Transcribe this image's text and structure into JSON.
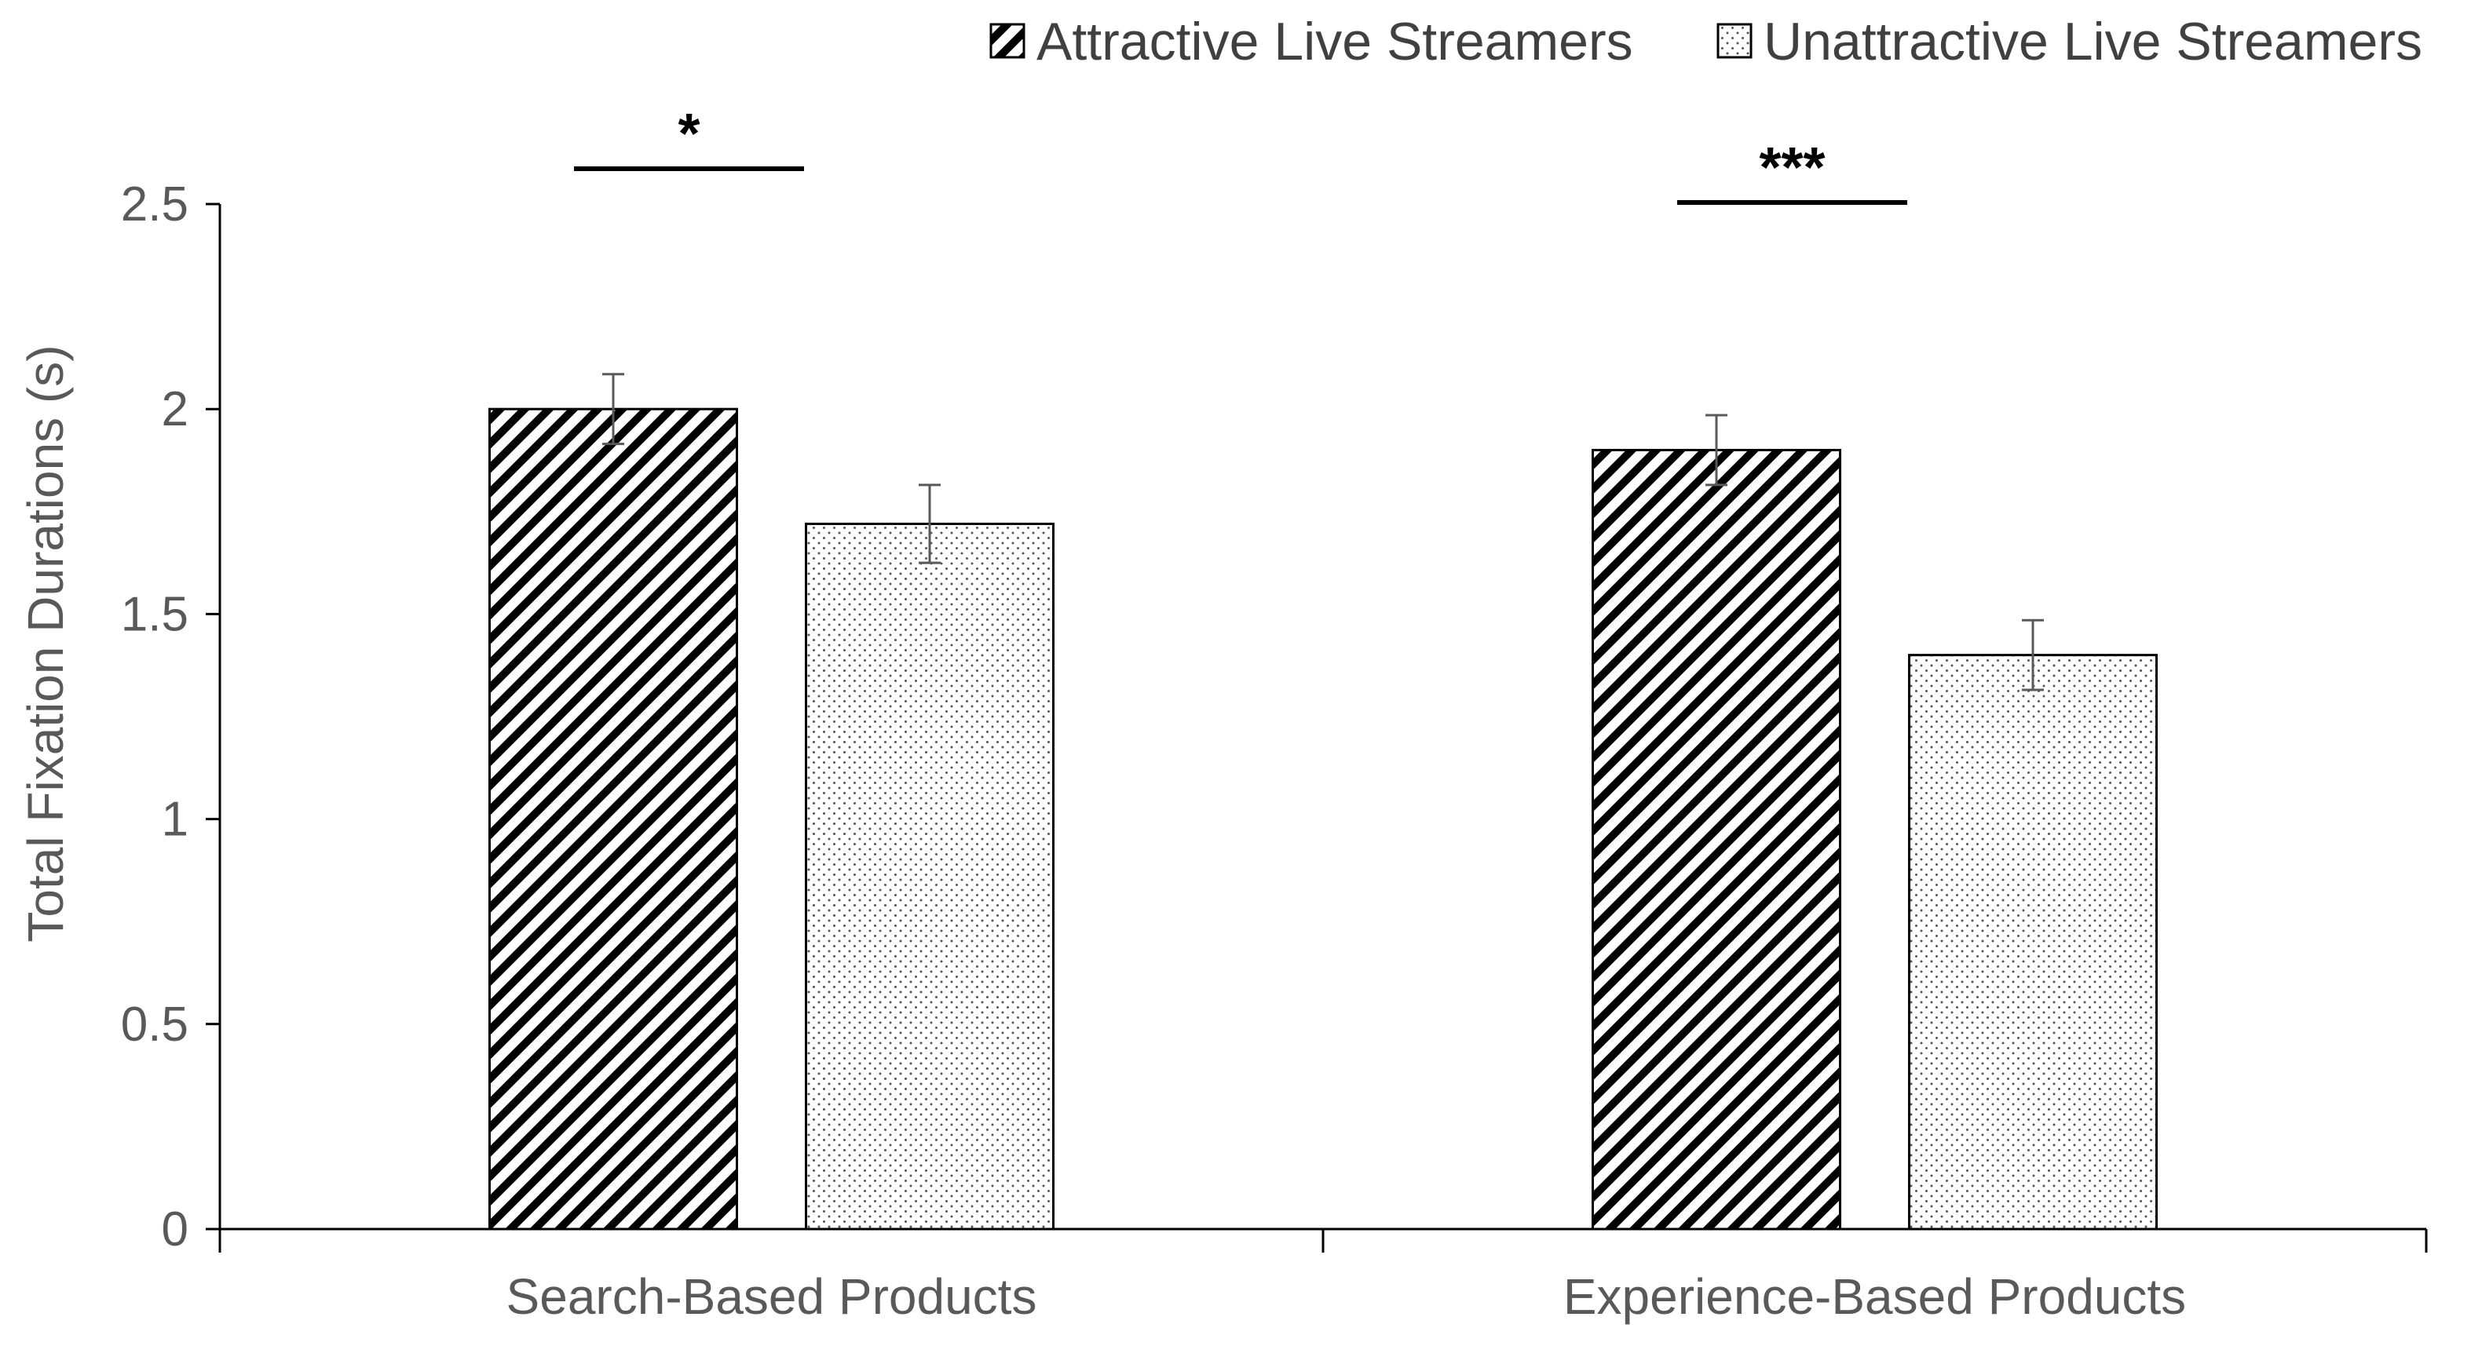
{
  "chart_data": {
    "type": "bar",
    "title": "",
    "xlabel": "",
    "ylabel": "Total Fixation Durations (s)",
    "ylim": [
      0,
      2.5
    ],
    "yticks": [
      0,
      0.5,
      1,
      1.5,
      2,
      2.5
    ],
    "ytick_labels": [
      "0",
      "0.5",
      "1",
      "1.5",
      "2",
      "2.5"
    ],
    "categories": [
      "Search-Based Products",
      "Experience-Based Products"
    ],
    "series": [
      {
        "name": "Attractive Live Streamers",
        "pattern": "diagonal-hatch",
        "values": [
          2.0,
          1.9
        ],
        "errors": [
          0.085,
          0.085
        ]
      },
      {
        "name": "Unattractive Live Streamers",
        "pattern": "dots",
        "values": [
          1.72,
          1.4
        ],
        "errors": [
          0.095,
          0.085
        ]
      }
    ],
    "significance": [
      {
        "category": "Search-Based Products",
        "label": "*"
      },
      {
        "category": "Experience-Based Products",
        "label": "***"
      }
    ],
    "grid": false,
    "legend_position": "top-right"
  },
  "colors": {
    "axis": "#000000",
    "label": "#595959",
    "bar_stroke": "#000000",
    "error_bar": "#595959"
  }
}
